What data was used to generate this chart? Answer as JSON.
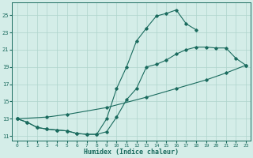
{
  "xlabel": "Humidex (Indice chaleur)",
  "bg_color": "#d4ede8",
  "line_color": "#1a6b5e",
  "grid_color": "#aed4cc",
  "xlim": [
    -0.5,
    23.5
  ],
  "ylim": [
    10.5,
    26.5
  ],
  "yticks": [
    11,
    13,
    15,
    17,
    19,
    21,
    23,
    25
  ],
  "xticks": [
    0,
    1,
    2,
    3,
    4,
    5,
    6,
    7,
    8,
    9,
    10,
    11,
    12,
    13,
    14,
    15,
    16,
    17,
    18,
    19,
    20,
    21,
    22,
    23
  ],
  "series1_x": [
    0,
    1,
    2,
    3,
    4,
    5,
    6,
    7,
    8,
    9,
    10,
    11,
    12,
    13,
    14,
    15,
    16,
    17,
    18
  ],
  "series1_y": [
    13,
    12.6,
    12.0,
    11.8,
    11.7,
    11.6,
    11.3,
    11.2,
    11.2,
    13.0,
    16.5,
    19.0,
    22.0,
    23.5,
    24.9,
    25.2,
    25.6,
    24.0,
    23.3
  ],
  "series2_x": [
    0,
    1,
    2,
    3,
    4,
    5,
    6,
    7,
    8,
    9,
    10,
    11,
    12,
    13,
    14,
    15,
    16,
    17,
    18,
    19,
    20,
    21,
    22,
    23
  ],
  "series2_y": [
    13,
    12.6,
    12.0,
    11.8,
    11.7,
    11.6,
    11.3,
    11.2,
    11.2,
    11.5,
    13.2,
    15.2,
    16.5,
    19.0,
    19.3,
    19.8,
    20.5,
    21.0,
    21.3,
    21.3,
    21.2,
    21.2,
    20.0,
    19.2
  ],
  "series3_x": [
    0,
    3,
    5,
    9,
    13,
    16,
    19,
    21,
    23
  ],
  "series3_y": [
    13,
    13.2,
    13.5,
    14.3,
    15.5,
    16.5,
    17.5,
    18.3,
    19.2
  ]
}
